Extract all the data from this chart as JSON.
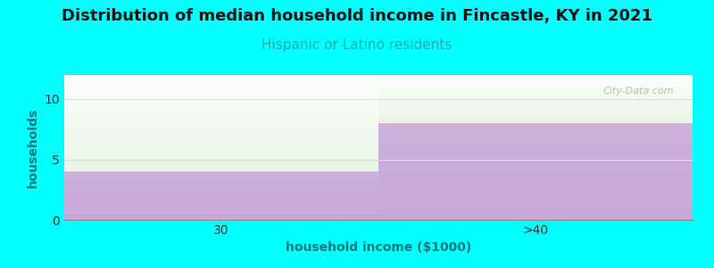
{
  "title": "Distribution of median household income in Fincastle, KY in 2021",
  "subtitle": "Hispanic or Latino residents",
  "xlabel": "household income ($1000)",
  "ylabel": "households",
  "categories": [
    "30",
    ">40"
  ],
  "values": [
    4,
    8
  ],
  "ylim": [
    0,
    12
  ],
  "yticks": [
    0,
    5,
    10
  ],
  "background_color": "#00FFFF",
  "plot_bg_top": "#FFFFFF",
  "bar_purple": "#C8A8D8",
  "bar_green_top": "#E8F5E5",
  "title_fontsize": 13,
  "subtitle_fontsize": 11,
  "subtitle_color": "#22AAAA",
  "axis_label_color": "#007777",
  "tick_label_color": "#333333",
  "watermark": "City-Data.com"
}
